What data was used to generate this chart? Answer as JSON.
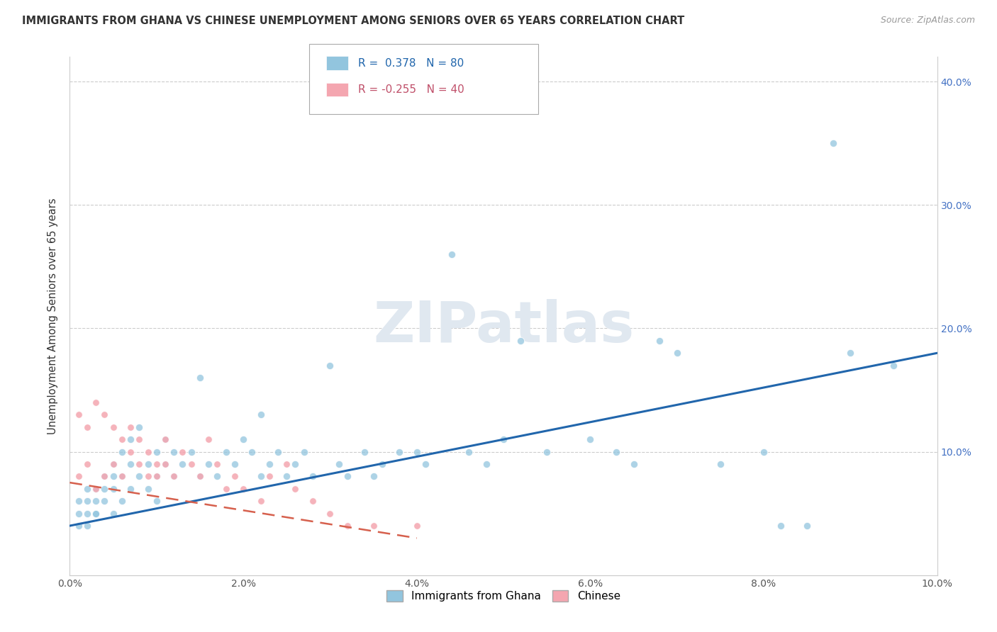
{
  "title": "IMMIGRANTS FROM GHANA VS CHINESE UNEMPLOYMENT AMONG SENIORS OVER 65 YEARS CORRELATION CHART",
  "source": "Source: ZipAtlas.com",
  "ylabel": "Unemployment Among Seniors over 65 years",
  "xlim": [
    0.0,
    0.1
  ],
  "ylim": [
    0.0,
    0.42
  ],
  "r_ghana": 0.378,
  "n_ghana": 80,
  "r_chinese": -0.255,
  "n_chinese": 40,
  "ghana_color": "#92c5de",
  "chinese_color": "#f4a6b0",
  "trendline_ghana_color": "#2166ac",
  "trendline_chinese_color": "#d6604d",
  "background_color": "#ffffff",
  "watermark": "ZIPatlas",
  "ghana_x": [
    0.001,
    0.001,
    0.001,
    0.002,
    0.002,
    0.002,
    0.002,
    0.003,
    0.003,
    0.003,
    0.003,
    0.004,
    0.004,
    0.004,
    0.005,
    0.005,
    0.005,
    0.005,
    0.006,
    0.006,
    0.006,
    0.007,
    0.007,
    0.007,
    0.008,
    0.008,
    0.009,
    0.009,
    0.01,
    0.01,
    0.01,
    0.011,
    0.011,
    0.012,
    0.012,
    0.013,
    0.014,
    0.015,
    0.015,
    0.016,
    0.017,
    0.018,
    0.019,
    0.02,
    0.021,
    0.022,
    0.022,
    0.023,
    0.024,
    0.025,
    0.026,
    0.027,
    0.028,
    0.03,
    0.031,
    0.032,
    0.034,
    0.035,
    0.036,
    0.038,
    0.04,
    0.041,
    0.044,
    0.046,
    0.048,
    0.05,
    0.052,
    0.055,
    0.06,
    0.063,
    0.065,
    0.068,
    0.07,
    0.075,
    0.08,
    0.082,
    0.085,
    0.088,
    0.09,
    0.095
  ],
  "ghana_y": [
    0.04,
    0.05,
    0.06,
    0.04,
    0.05,
    0.07,
    0.06,
    0.05,
    0.06,
    0.07,
    0.05,
    0.06,
    0.07,
    0.08,
    0.05,
    0.07,
    0.08,
    0.09,
    0.06,
    0.08,
    0.1,
    0.07,
    0.09,
    0.11,
    0.08,
    0.12,
    0.07,
    0.09,
    0.06,
    0.08,
    0.1,
    0.09,
    0.11,
    0.08,
    0.1,
    0.09,
    0.1,
    0.08,
    0.16,
    0.09,
    0.08,
    0.1,
    0.09,
    0.11,
    0.1,
    0.13,
    0.08,
    0.09,
    0.1,
    0.08,
    0.09,
    0.1,
    0.08,
    0.17,
    0.09,
    0.08,
    0.1,
    0.08,
    0.09,
    0.1,
    0.1,
    0.09,
    0.26,
    0.1,
    0.09,
    0.11,
    0.19,
    0.1,
    0.11,
    0.1,
    0.09,
    0.19,
    0.18,
    0.09,
    0.1,
    0.04,
    0.04,
    0.35,
    0.18,
    0.17
  ],
  "chinese_x": [
    0.001,
    0.001,
    0.002,
    0.002,
    0.003,
    0.003,
    0.004,
    0.004,
    0.005,
    0.005,
    0.006,
    0.006,
    0.007,
    0.007,
    0.008,
    0.008,
    0.009,
    0.009,
    0.01,
    0.01,
    0.011,
    0.011,
    0.012,
    0.013,
    0.014,
    0.015,
    0.016,
    0.017,
    0.018,
    0.019,
    0.02,
    0.022,
    0.023,
    0.025,
    0.026,
    0.028,
    0.03,
    0.032,
    0.035,
    0.04
  ],
  "chinese_y": [
    0.13,
    0.08,
    0.12,
    0.09,
    0.14,
    0.07,
    0.13,
    0.08,
    0.12,
    0.09,
    0.11,
    0.08,
    0.1,
    0.12,
    0.09,
    0.11,
    0.08,
    0.1,
    0.09,
    0.08,
    0.11,
    0.09,
    0.08,
    0.1,
    0.09,
    0.08,
    0.11,
    0.09,
    0.07,
    0.08,
    0.07,
    0.06,
    0.08,
    0.09,
    0.07,
    0.06,
    0.05,
    0.04,
    0.04,
    0.04
  ],
  "ghana_trend_x": [
    0.0,
    0.1
  ],
  "ghana_trend_y": [
    0.04,
    0.18
  ],
  "chinese_trend_x": [
    0.0,
    0.04
  ],
  "chinese_trend_y": [
    0.075,
    0.03
  ]
}
